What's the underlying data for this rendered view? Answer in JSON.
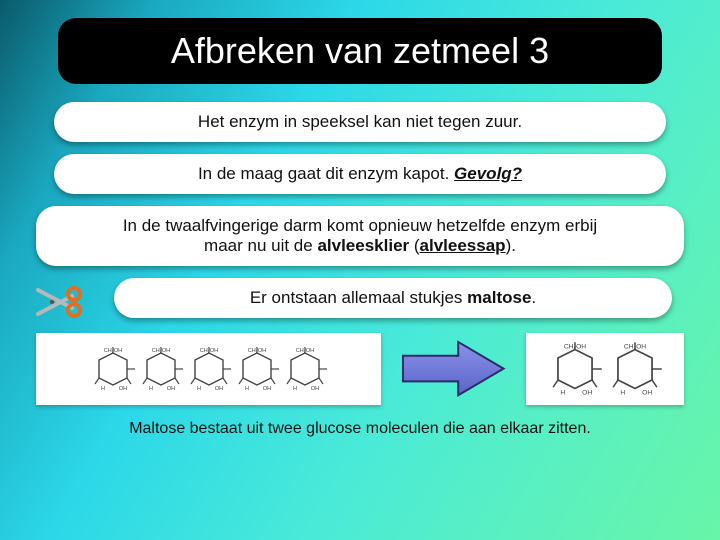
{
  "slide": {
    "title": "Afbreken van zetmeel 3",
    "box1": "Het enzym in speeksel kan niet tegen zuur.",
    "box2_prefix": "In de maag gaat dit enzym kapot. ",
    "box2_emph": "Gevolg?",
    "box3_line1": "In de twaalfvingerige darm komt opnieuw hetzelfde enzym erbij",
    "box3_line2_prefix": "maar nu uit de ",
    "box3_line2_b1": "alvleesklier",
    "box3_line2_mid": " (",
    "box3_line2_b2": "alvleessap",
    "box3_line2_suffix": ").",
    "box4_prefix": "Er ontstaan allemaal stukjes ",
    "box4_bold": "maltose",
    "box4_suffix": ".",
    "caption": "Maltose bestaat uit twee glucose moleculen die aan elkaar zitten."
  },
  "style": {
    "title_bg": "#000000",
    "title_color": "#ffffff",
    "title_fontsize": 36,
    "title_radius": 18,
    "box_bg": "#ffffff",
    "box_radius": 20,
    "box_fontsize": 17,
    "caption_fontsize": 16,
    "gradient_stops": [
      "#0a5a6a",
      "#1aa8c0",
      "#2cd8e8",
      "#4aead8",
      "#5af0c0",
      "#68f5a8"
    ],
    "arrow_fill": "#6a74d8",
    "arrow_stroke": "#2a2a6a",
    "scissors_handle": "#e07020",
    "scissors_blade": "#b8b8b8"
  },
  "diagram": {
    "type": "infographic",
    "starch": {
      "units": 5,
      "label_top": "CH₂OH",
      "label_bottom": "H  OH"
    },
    "product": {
      "units": 2,
      "name": "Maltose"
    },
    "molecule_stroke": "#444444"
  }
}
